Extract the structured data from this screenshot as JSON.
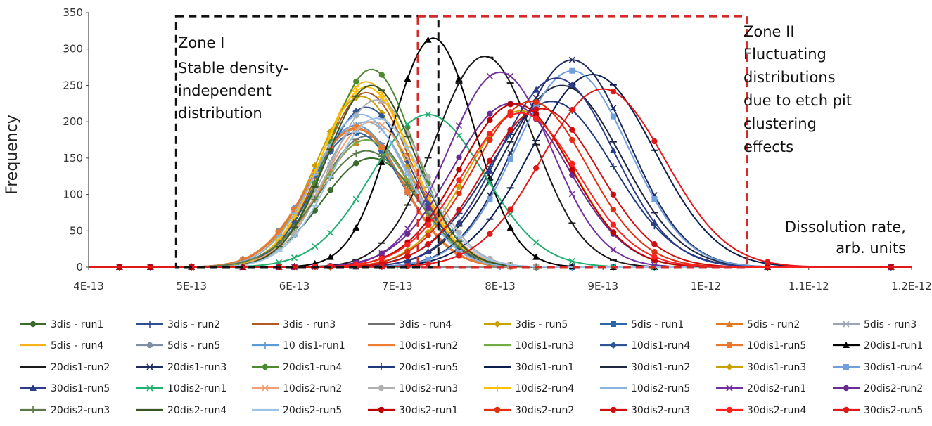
{
  "chart_data": {
    "type": "line",
    "title": "",
    "xlabel": "Dissolution rate, arb. units",
    "ylabel": "Frequency",
    "xlim": [
      4e-13,
      1.2e-12
    ],
    "ylim": [
      0,
      350
    ],
    "x_ticks": [
      "4E-13",
      "5E-13",
      "6E-13",
      "7E-13",
      "8E-13",
      "9E-13",
      "1E-12",
      "1.1E-12",
      "1.2E-12"
    ],
    "y_ticks": [
      "0",
      "50",
      "100",
      "150",
      "200",
      "250",
      "300",
      "350"
    ],
    "annotations": {
      "zone1": {
        "lines": [
          "Zone I",
          "Stable density-",
          "independent",
          "distribution"
        ],
        "x_range": [
          4.85e-13,
          7.4e-13
        ],
        "y_top": 345
      },
      "zone2": {
        "lines": [
          "Zone II",
          "Fluctuating",
          "distributions",
          "due to etch pit",
          "clustering",
          "effects"
        ],
        "x_range": [
          7.2e-13,
          1.04e-12
        ],
        "y_top": 345
      },
      "axis_note": [
        "Dissolution rate,",
        "arb. units"
      ]
    },
    "series": [
      {
        "name": "3dis - run1",
        "color": "#3a6b2a",
        "marker": "circle",
        "mu": 6.75e-13,
        "peak": 150,
        "sigma": 4.8e-14
      },
      {
        "name": "3dis - run2",
        "color": "#2f4f90",
        "marker": "plus",
        "mu": 6.6e-13,
        "peak": 185,
        "sigma": 4.6e-14
      },
      {
        "name": "3dis - run3",
        "color": "#b05a22",
        "marker": "dash",
        "mu": 6.7e-13,
        "peak": 240,
        "sigma": 4.3e-14
      },
      {
        "name": "3dis - run4",
        "color": "#707070",
        "marker": "dash",
        "mu": 6.7e-13,
        "peak": 180,
        "sigma": 4.5e-14
      },
      {
        "name": "3dis - run5",
        "color": "#c9a000",
        "marker": "diamond",
        "mu": 6.65e-13,
        "peak": 235,
        "sigma": 4.4e-14
      },
      {
        "name": "5dis - run1",
        "color": "#2e64a8",
        "marker": "square",
        "mu": 6.6e-13,
        "peak": 185,
        "sigma": 4.6e-14
      },
      {
        "name": "5dis - run2",
        "color": "#e07a22",
        "marker": "triangle",
        "mu": 6.7e-13,
        "peak": 175,
        "sigma": 4.5e-14
      },
      {
        "name": "5dis - run3",
        "color": "#9aa6b8",
        "marker": "x",
        "mu": 6.7e-13,
        "peak": 200,
        "sigma": 4.4e-14
      },
      {
        "name": "5dis - run4",
        "color": "#f2b418",
        "marker": "dash",
        "mu": 6.7e-13,
        "peak": 255,
        "sigma": 4.3e-14
      },
      {
        "name": "5dis - run5",
        "color": "#7f8f9f",
        "marker": "circle",
        "mu": 6.6e-13,
        "peak": 190,
        "sigma": 4.6e-14
      },
      {
        "name": "10 dis1-run1",
        "color": "#5b9bd5",
        "marker": "plus",
        "mu": 6.6e-13,
        "peak": 195,
        "sigma": 4.5e-14
      },
      {
        "name": "10dis1-run2",
        "color": "#ed7d31",
        "marker": "dash",
        "mu": 6.6e-13,
        "peak": 190,
        "sigma": 4.6e-14
      },
      {
        "name": "10dis1-run3",
        "color": "#70ad47",
        "marker": "dash",
        "mu": 6.7e-13,
        "peak": 175,
        "sigma": 4.6e-14
      },
      {
        "name": "10dis1-run4",
        "color": "#2f5597",
        "marker": "diamond",
        "mu": 6.7e-13,
        "peak": 220,
        "sigma": 4.4e-14
      },
      {
        "name": "10dis1-run5",
        "color": "#e87830",
        "marker": "square",
        "mu": 6.6e-13,
        "peak": 192,
        "sigma": 4.5e-14
      },
      {
        "name": "20dis1-run1",
        "color": "#000000",
        "marker": "triangle",
        "mu": 7.35e-13,
        "peak": 315,
        "sigma": 4e-14
      },
      {
        "name": "20dis1-run2",
        "color": "#1a1a1a",
        "marker": "dash",
        "mu": 7.85e-13,
        "peak": 290,
        "sigma": 4.8e-14
      },
      {
        "name": "20dis1-run3",
        "color": "#1f2a60",
        "marker": "x",
        "mu": 8.7e-13,
        "peak": 285,
        "sigma": 5.5e-14
      },
      {
        "name": "20dis1-run4",
        "color": "#4c8a2e",
        "marker": "circle",
        "mu": 6.75e-13,
        "peak": 272,
        "sigma": 4.2e-14
      },
      {
        "name": "20dis1-run5",
        "color": "#1f3a7a",
        "marker": "plus",
        "mu": 8.5e-13,
        "peak": 228,
        "sigma": 6e-14
      },
      {
        "name": "30dis1-run1",
        "color": "#0a1e50",
        "marker": "dash",
        "mu": 8.9e-13,
        "peak": 265,
        "sigma": 6e-14
      },
      {
        "name": "30dis1-run2",
        "color": "#202840",
        "marker": "dash",
        "mu": 8.6e-13,
        "peak": 250,
        "sigma": 5.8e-14
      },
      {
        "name": "30dis1-run3",
        "color": "#c8a000",
        "marker": "diamond",
        "mu": 8.2e-13,
        "peak": 215,
        "sigma": 5.2e-14
      },
      {
        "name": "30dis1-run4",
        "color": "#6fa0dc",
        "marker": "square",
        "mu": 8.7e-13,
        "peak": 270,
        "sigma": 5.5e-14
      },
      {
        "name": "30dis1-run5",
        "color": "#2b3a8a",
        "marker": "triangle",
        "mu": 8.55e-13,
        "peak": 260,
        "sigma": 5.6e-14
      },
      {
        "name": "10dis2-run1",
        "color": "#20b070",
        "marker": "x",
        "mu": 7.3e-13,
        "peak": 210,
        "sigma": 5.5e-14
      },
      {
        "name": "10dis2-run2",
        "color": "#f0a070",
        "marker": "x",
        "mu": 6.75e-13,
        "peak": 200,
        "sigma": 4.6e-14
      },
      {
        "name": "10dis2-run3",
        "color": "#b0b0b0",
        "marker": "circle",
        "mu": 6.8e-13,
        "peak": 230,
        "sigma": 4.5e-14
      },
      {
        "name": "10dis2-run4",
        "color": "#ffc000",
        "marker": "plus",
        "mu": 6.7e-13,
        "peak": 248,
        "sigma": 4.4e-14
      },
      {
        "name": "10dis2-run5",
        "color": "#8ab4e0",
        "marker": "dash",
        "mu": 6.65e-13,
        "peak": 210,
        "sigma": 4.5e-14
      },
      {
        "name": "20dis2-run1",
        "color": "#7030a0",
        "marker": "x",
        "mu": 8e-13,
        "peak": 268,
        "sigma": 5e-14
      },
      {
        "name": "20dis2-run2",
        "color": "#6a2c91",
        "marker": "circle",
        "mu": 8.1e-13,
        "peak": 225,
        "sigma": 5.6e-14
      },
      {
        "name": "20dis2-run3",
        "color": "#5a7a4a",
        "marker": "plus",
        "mu": 6.7e-13,
        "peak": 160,
        "sigma": 4.8e-14
      },
      {
        "name": "20dis2-run4",
        "color": "#375623",
        "marker": "dash",
        "mu": 6.75e-13,
        "peak": 250,
        "sigma": 4.3e-14
      },
      {
        "name": "20dis2-run5",
        "color": "#9dc3e6",
        "marker": "dash",
        "mu": 6.8e-13,
        "peak": 205,
        "sigma": 4.5e-14
      },
      {
        "name": "30dis2-run1",
        "color": "#c00000",
        "marker": "circle",
        "mu": 8.15e-13,
        "peak": 225,
        "sigma": 5.4e-14
      },
      {
        "name": "30dis2-run2",
        "color": "#e03010",
        "marker": "circle",
        "mu": 8.3e-13,
        "peak": 228,
        "sigma": 5.5e-14
      },
      {
        "name": "30dis2-run3",
        "color": "#d01010",
        "marker": "circle",
        "mu": 8.4e-13,
        "peak": 218,
        "sigma": 5.6e-14
      },
      {
        "name": "30dis2-run4",
        "color": "#ff2020",
        "marker": "circle",
        "mu": 8.2e-13,
        "peak": 212,
        "sigma": 5.6e-14
      },
      {
        "name": "30dis2-run5",
        "color": "#e01818",
        "marker": "circle",
        "mu": 9e-13,
        "peak": 245,
        "sigma": 6e-14
      }
    ]
  }
}
